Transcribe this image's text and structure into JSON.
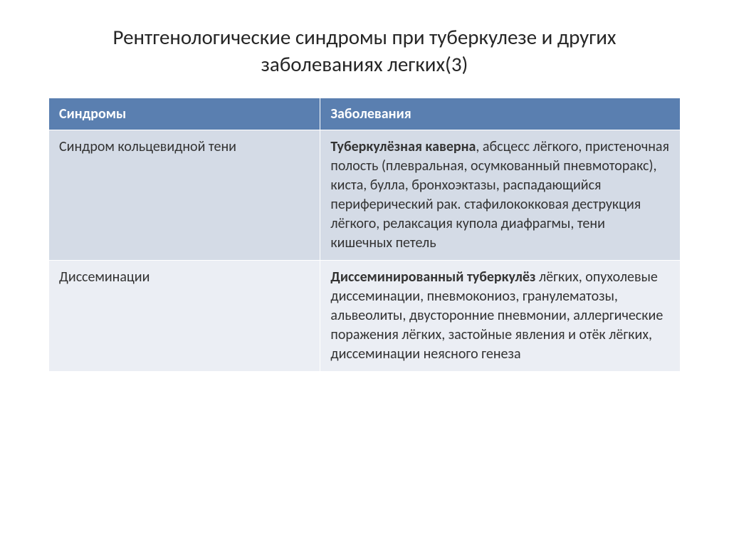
{
  "title": "Рентгенологические синдромы при туберкулезе и других заболеваниях легких(3)",
  "table": {
    "header_bg": "#5a7fb0",
    "header_fg": "#ffffff",
    "row_alt_bg_a": "#d4dbe6",
    "row_alt_bg_b": "#ebeef4",
    "columns": [
      "Синдромы",
      "Заболевания"
    ],
    "rows": [
      {
        "syndrome": "Синдром кольцевидной тени",
        "disease_bold": "Туберкулёзная каверна",
        "disease_rest": ", абсцесс лёгкого, пристеночная полость (плевральная, осумкованный пневмоторакс), киста, булла, бронхоэктазы, распадающийся периферический рак. стафилококковая деструкция лёгкого, релаксация купола диафрагмы, тени кишечных петель"
      },
      {
        "syndrome": "Диссеминации",
        "disease_bold": "Диссеминированный туберкулёз",
        "disease_rest": " лёгких, опухолевые диссеминации, пневмокониоз, гранулематозы, альвеолиты, двусторонние пневмонии, аллергические поражения лёгких, застойные явления и отёк лёгких, диссеминации неясного генеза"
      }
    ]
  }
}
